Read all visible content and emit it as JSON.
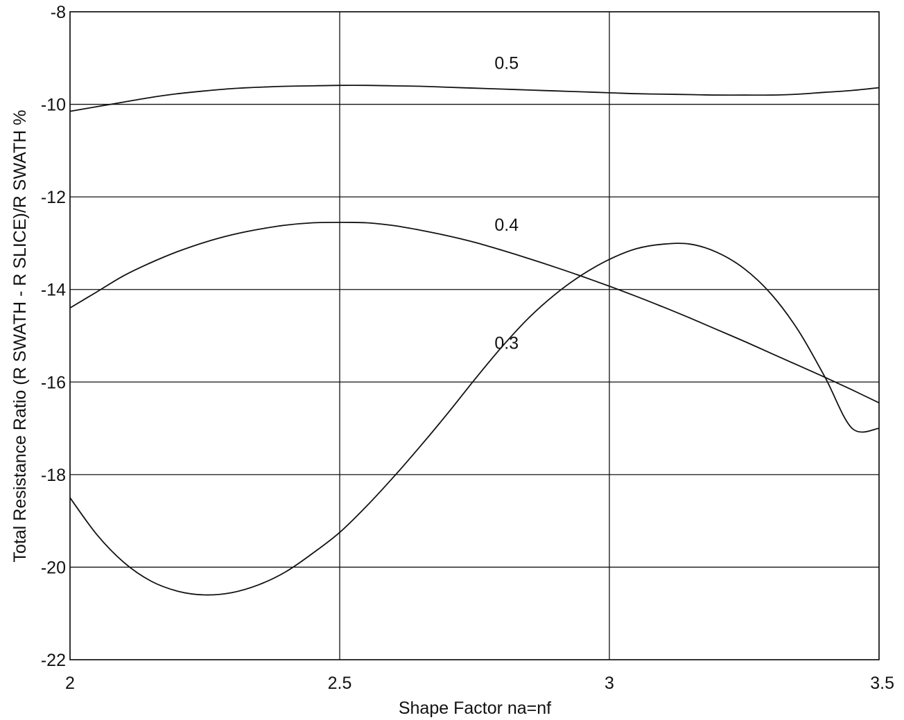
{
  "chart_data": {
    "type": "line",
    "title": "",
    "xlabel": "Shape Factor na=nf",
    "ylabel": "Total Resistance Ratio (R SWATH - R SLICE)/R SWATH %",
    "xlim": [
      2,
      3.5
    ],
    "ylim": [
      -22,
      -8
    ],
    "x_ticks": [
      2,
      2.5,
      3,
      3.5
    ],
    "x_tick_labels": [
      "2",
      "2.5",
      "3",
      "3.5"
    ],
    "y_ticks": [
      -22,
      -20,
      -18,
      -16,
      -14,
      -12,
      -10,
      -8
    ],
    "y_tick_labels": [
      "-22",
      "-20",
      "-18",
      "-16",
      "-14",
      "-12",
      "-10",
      "-8"
    ],
    "grid": true,
    "series": [
      {
        "name": "0.5",
        "label_at": [
          2.8,
          -9.1
        ],
        "x": [
          2.0,
          2.05,
          2.1,
          2.15,
          2.2,
          2.25,
          2.3,
          2.35,
          2.4,
          2.45,
          2.5,
          2.55,
          2.6,
          2.65,
          2.7,
          2.75,
          2.8,
          2.85,
          2.9,
          2.95,
          3.0,
          3.05,
          3.1,
          3.15,
          3.2,
          3.25,
          3.3,
          3.35,
          3.4,
          3.45,
          3.5
        ],
        "values": [
          -10.15,
          -10.05,
          -9.95,
          -9.85,
          -9.77,
          -9.71,
          -9.66,
          -9.63,
          -9.61,
          -9.6,
          -9.59,
          -9.59,
          -9.6,
          -9.61,
          -9.63,
          -9.65,
          -9.67,
          -9.69,
          -9.71,
          -9.73,
          -9.75,
          -9.77,
          -9.78,
          -9.79,
          -9.8,
          -9.8,
          -9.8,
          -9.78,
          -9.74,
          -9.7,
          -9.64
        ]
      },
      {
        "name": "0.4",
        "label_at": [
          2.8,
          -12.6
        ],
        "x": [
          2.0,
          2.05,
          2.1,
          2.15,
          2.2,
          2.25,
          2.3,
          2.35,
          2.4,
          2.45,
          2.5,
          2.55,
          2.6,
          2.65,
          2.7,
          2.75,
          2.8,
          2.85,
          2.9,
          2.95,
          3.0,
          3.05,
          3.1,
          3.15,
          3.2,
          3.25,
          3.3,
          3.35,
          3.4,
          3.45,
          3.5
        ],
        "values": [
          -14.4,
          -14.05,
          -13.7,
          -13.42,
          -13.18,
          -12.98,
          -12.82,
          -12.7,
          -12.61,
          -12.56,
          -12.55,
          -12.56,
          -12.62,
          -12.72,
          -12.84,
          -12.98,
          -13.15,
          -13.33,
          -13.52,
          -13.72,
          -13.93,
          -14.15,
          -14.38,
          -14.62,
          -14.87,
          -15.12,
          -15.38,
          -15.64,
          -15.9,
          -16.17,
          -16.45
        ]
      },
      {
        "name": "0.3",
        "label_at": [
          2.8,
          -15.15
        ],
        "x": [
          2.0,
          2.05,
          2.1,
          2.15,
          2.2,
          2.25,
          2.3,
          2.35,
          2.4,
          2.45,
          2.5,
          2.55,
          2.6,
          2.65,
          2.7,
          2.75,
          2.8,
          2.85,
          2.9,
          2.95,
          3.0,
          3.05,
          3.1,
          3.15,
          3.2,
          3.25,
          3.3,
          3.35,
          3.4,
          3.45,
          3.5
        ],
        "values": [
          -18.5,
          -19.3,
          -19.9,
          -20.3,
          -20.52,
          -20.6,
          -20.55,
          -20.38,
          -20.1,
          -19.7,
          -19.25,
          -18.68,
          -18.05,
          -17.38,
          -16.68,
          -15.95,
          -15.25,
          -14.62,
          -14.1,
          -13.68,
          -13.35,
          -13.12,
          -13.02,
          -13.02,
          -13.2,
          -13.55,
          -14.1,
          -14.88,
          -15.9,
          -17.0,
          -17.0
        ]
      }
    ]
  }
}
